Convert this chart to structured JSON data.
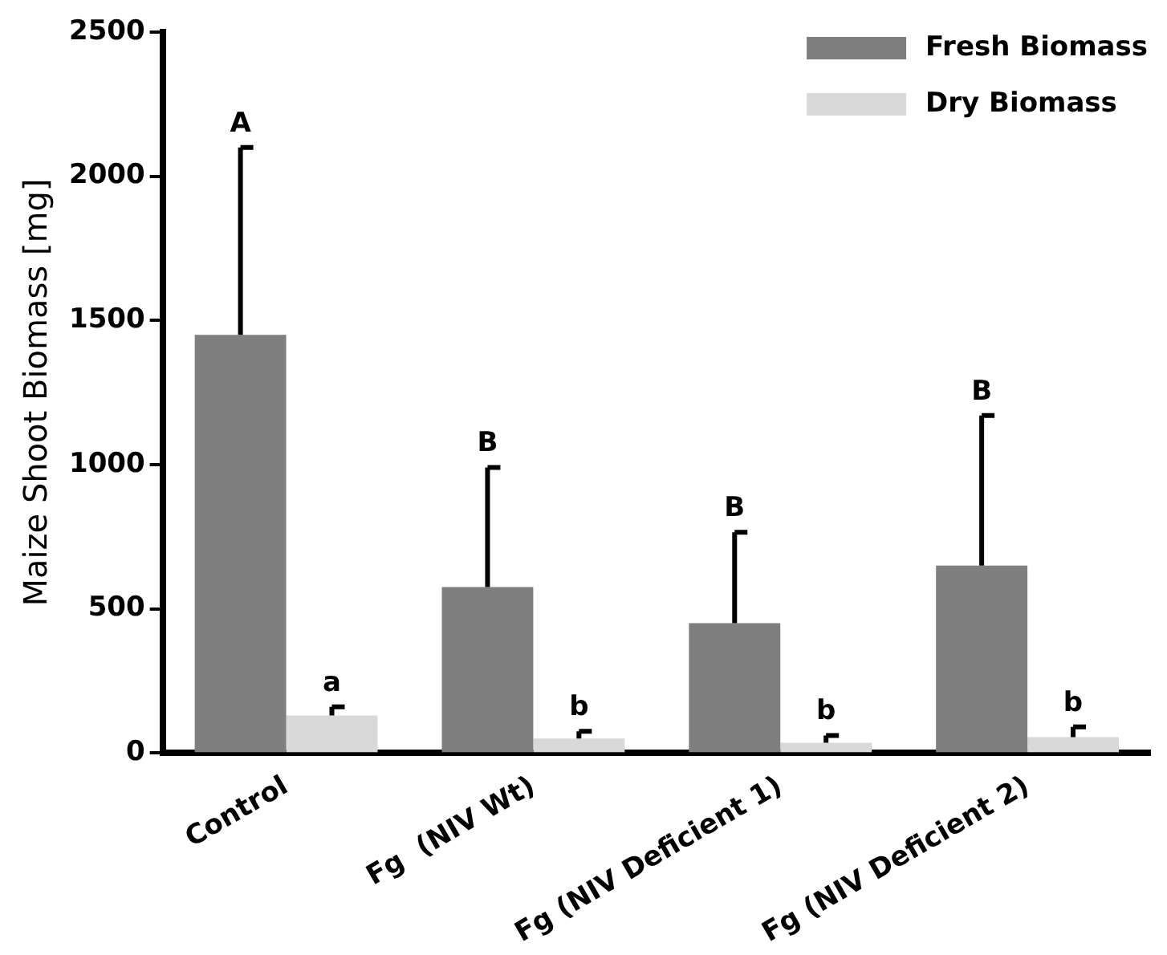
{
  "chart_data": {
    "type": "bar",
    "ylabel": "Maize Shoot Biomass [mg]",
    "categories": [
      "Control",
      "Fg  (NIV Wt)",
      "Fg (NIV Deficient 1)",
      "Fg (NIV Deficient 2)"
    ],
    "series": [
      {
        "name": "Fresh Biomass",
        "color": "#7f7f7f",
        "values": [
          1450,
          575,
          450,
          650
        ],
        "errors": [
          [
            1450,
            2100
          ],
          [
            575,
            990
          ],
          [
            450,
            765
          ],
          [
            650,
            1170
          ]
        ]
      },
      {
        "name": "Dry Biomass",
        "color": "#d9d9d9",
        "values": [
          130,
          50,
          35,
          55
        ],
        "errors": [
          [
            130,
            160
          ],
          [
            50,
            75
          ],
          [
            35,
            60
          ],
          [
            55,
            90
          ]
        ]
      }
    ],
    "ylim": [
      0,
      2500
    ],
    "yticks": [
      0,
      500,
      1000,
      1500,
      2000,
      2500
    ],
    "grid": false,
    "legend": "top right",
    "annotations": [
      "A",
      "a",
      "B",
      "b",
      "B",
      "b",
      "B",
      "b"
    ]
  }
}
